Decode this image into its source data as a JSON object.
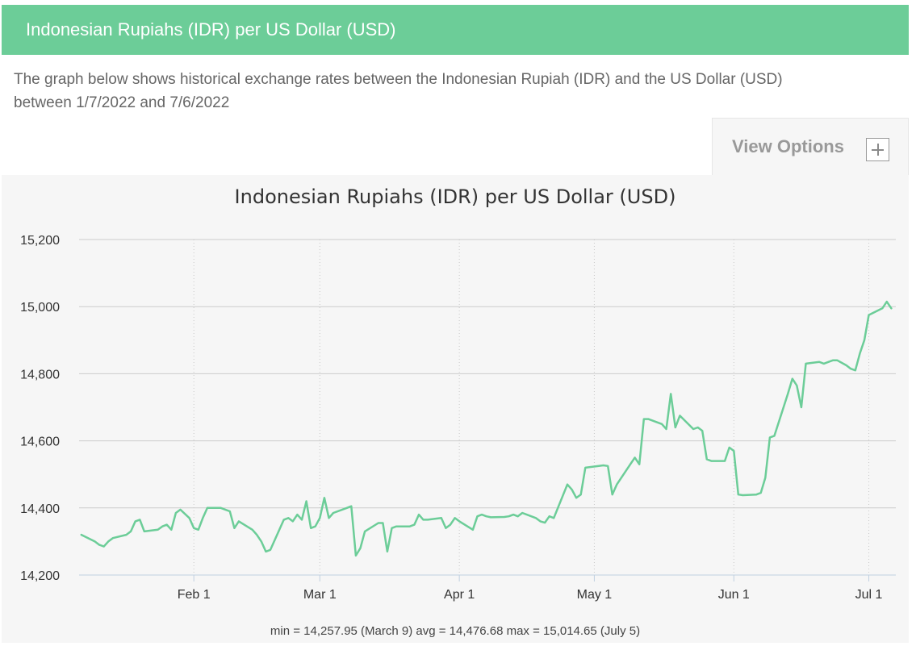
{
  "header": {
    "title": "Indonesian Rupiahs (IDR) per US Dollar (USD)"
  },
  "description": {
    "line1": "The graph below shows historical exchange rates between the Indonesian Rupiah (IDR) and the US Dollar (USD)",
    "line2": "between 1/7/2022 and 7/6/2022"
  },
  "view_options": {
    "label": "View Options",
    "icon": "plus-icon"
  },
  "colors": {
    "header_bg": "#6ccd98",
    "line": "#6ccd98",
    "panel_bg": "#f6f6f6"
  },
  "stats": {
    "text": "min = 14,257.95 (March 9) avg = 14,476.68 max = 15,014.65 (July 5)"
  },
  "chart_data": {
    "type": "line",
    "title": "Indonesian Rupiahs (IDR) per US Dollar (USD)",
    "xlabel": "",
    "ylabel": "",
    "ylim": [
      14200,
      15200
    ],
    "y_ticks": [
      14200,
      14400,
      14600,
      14800,
      15000,
      15200
    ],
    "y_tick_labels": [
      "14,200",
      "14,400",
      "14,600",
      "14,800",
      "15,000",
      "15,200"
    ],
    "x_ticks": [
      "2022-02-01",
      "2022-03-01",
      "2022-04-01",
      "2022-05-01",
      "2022-06-01",
      "2022-07-01"
    ],
    "x_tick_labels": [
      "Feb 1",
      "Mar 1",
      "Apr 1",
      "May 1",
      "Jun 1",
      "Jul 1"
    ],
    "x_range": [
      "2022-01-07",
      "2022-07-06"
    ],
    "grid": {
      "horizontal": true,
      "vertical_dotted": true
    },
    "series": [
      {
        "values": [
          [
            "2022-01-07",
            14320
          ],
          [
            "2022-01-10",
            14300
          ],
          [
            "2022-01-11",
            14290
          ],
          [
            "2022-01-12",
            14285
          ],
          [
            "2022-01-13",
            14300
          ],
          [
            "2022-01-14",
            14310
          ],
          [
            "2022-01-17",
            14320
          ],
          [
            "2022-01-18",
            14330
          ],
          [
            "2022-01-19",
            14360
          ],
          [
            "2022-01-20",
            14365
          ],
          [
            "2022-01-21",
            14330
          ],
          [
            "2022-01-24",
            14335
          ],
          [
            "2022-01-25",
            14345
          ],
          [
            "2022-01-26",
            14350
          ],
          [
            "2022-01-27",
            14335
          ],
          [
            "2022-01-28",
            14385
          ],
          [
            "2022-01-29",
            14395
          ],
          [
            "2022-01-31",
            14370
          ],
          [
            "2022-02-01",
            14340
          ],
          [
            "2022-02-02",
            14335
          ],
          [
            "2022-02-03",
            14370
          ],
          [
            "2022-02-04",
            14400
          ],
          [
            "2022-02-07",
            14400
          ],
          [
            "2022-02-08",
            14395
          ],
          [
            "2022-02-09",
            14390
          ],
          [
            "2022-02-10",
            14340
          ],
          [
            "2022-02-11",
            14360
          ],
          [
            "2022-02-14",
            14335
          ],
          [
            "2022-02-15",
            14320
          ],
          [
            "2022-02-16",
            14300
          ],
          [
            "2022-02-17",
            14270
          ],
          [
            "2022-02-18",
            14275
          ],
          [
            "2022-02-21",
            14365
          ],
          [
            "2022-02-22",
            14370
          ],
          [
            "2022-02-23",
            14360
          ],
          [
            "2022-02-24",
            14380
          ],
          [
            "2022-02-25",
            14365
          ],
          [
            "2022-02-26",
            14420
          ],
          [
            "2022-02-27",
            14340
          ],
          [
            "2022-02-28",
            14345
          ],
          [
            "2022-03-01",
            14370
          ],
          [
            "2022-03-02",
            14430
          ],
          [
            "2022-03-03",
            14370
          ],
          [
            "2022-03-04",
            14385
          ],
          [
            "2022-03-07",
            14400
          ],
          [
            "2022-03-08",
            14405
          ],
          [
            "2022-03-09",
            14258
          ],
          [
            "2022-03-10",
            14280
          ],
          [
            "2022-03-11",
            14330
          ],
          [
            "2022-03-14",
            14355
          ],
          [
            "2022-03-15",
            14355
          ],
          [
            "2022-03-16",
            14270
          ],
          [
            "2022-03-17",
            14340
          ],
          [
            "2022-03-18",
            14345
          ],
          [
            "2022-03-21",
            14345
          ],
          [
            "2022-03-22",
            14350
          ],
          [
            "2022-03-23",
            14380
          ],
          [
            "2022-03-24",
            14365
          ],
          [
            "2022-03-25",
            14365
          ],
          [
            "2022-03-28",
            14370
          ],
          [
            "2022-03-29",
            14340
          ],
          [
            "2022-03-30",
            14350
          ],
          [
            "2022-03-31",
            14370
          ],
          [
            "2022-04-01",
            14360
          ],
          [
            "2022-04-04",
            14335
          ],
          [
            "2022-04-05",
            14375
          ],
          [
            "2022-04-06",
            14380
          ],
          [
            "2022-04-07",
            14375
          ],
          [
            "2022-04-08",
            14372
          ],
          [
            "2022-04-11",
            14373
          ],
          [
            "2022-04-12",
            14375
          ],
          [
            "2022-04-13",
            14380
          ],
          [
            "2022-04-14",
            14375
          ],
          [
            "2022-04-15",
            14385
          ],
          [
            "2022-04-18",
            14370
          ],
          [
            "2022-04-19",
            14360
          ],
          [
            "2022-04-20",
            14356
          ],
          [
            "2022-04-21",
            14375
          ],
          [
            "2022-04-22",
            14370
          ],
          [
            "2022-04-25",
            14470
          ],
          [
            "2022-04-26",
            14455
          ],
          [
            "2022-04-27",
            14430
          ],
          [
            "2022-04-28",
            14440
          ],
          [
            "2022-04-29",
            14520
          ],
          [
            "2022-05-02",
            14525
          ],
          [
            "2022-05-03",
            14527
          ],
          [
            "2022-05-04",
            14525
          ],
          [
            "2022-05-05",
            14440
          ],
          [
            "2022-05-06",
            14470
          ],
          [
            "2022-05-09",
            14530
          ],
          [
            "2022-05-10",
            14550
          ],
          [
            "2022-05-11",
            14530
          ],
          [
            "2022-05-12",
            14665
          ],
          [
            "2022-05-13",
            14665
          ],
          [
            "2022-05-16",
            14650
          ],
          [
            "2022-05-17",
            14635
          ],
          [
            "2022-05-18",
            14740
          ],
          [
            "2022-05-19",
            14640
          ],
          [
            "2022-05-20",
            14675
          ],
          [
            "2022-05-23",
            14635
          ],
          [
            "2022-05-24",
            14640
          ],
          [
            "2022-05-25",
            14630
          ],
          [
            "2022-05-26",
            14545
          ],
          [
            "2022-05-27",
            14540
          ],
          [
            "2022-05-30",
            14540
          ],
          [
            "2022-05-31",
            14580
          ],
          [
            "2022-06-01",
            14570
          ],
          [
            "2022-06-02",
            14440
          ],
          [
            "2022-06-03",
            14438
          ],
          [
            "2022-06-06",
            14440
          ],
          [
            "2022-06-07",
            14445
          ],
          [
            "2022-06-08",
            14490
          ],
          [
            "2022-06-09",
            14610
          ],
          [
            "2022-06-10",
            14615
          ],
          [
            "2022-06-13",
            14740
          ],
          [
            "2022-06-14",
            14785
          ],
          [
            "2022-06-15",
            14765
          ],
          [
            "2022-06-16",
            14700
          ],
          [
            "2022-06-17",
            14830
          ],
          [
            "2022-06-20",
            14835
          ],
          [
            "2022-06-21",
            14830
          ],
          [
            "2022-06-22",
            14835
          ],
          [
            "2022-06-23",
            14840
          ],
          [
            "2022-06-24",
            14840
          ],
          [
            "2022-06-26",
            14825
          ],
          [
            "2022-06-27",
            14815
          ],
          [
            "2022-06-28",
            14810
          ],
          [
            "2022-06-29",
            14860
          ],
          [
            "2022-06-30",
            14900
          ],
          [
            "2022-07-01",
            14975
          ],
          [
            "2022-07-04",
            14995
          ],
          [
            "2022-07-05",
            15014.65
          ],
          [
            "2022-07-06",
            14995
          ]
        ]
      }
    ]
  }
}
